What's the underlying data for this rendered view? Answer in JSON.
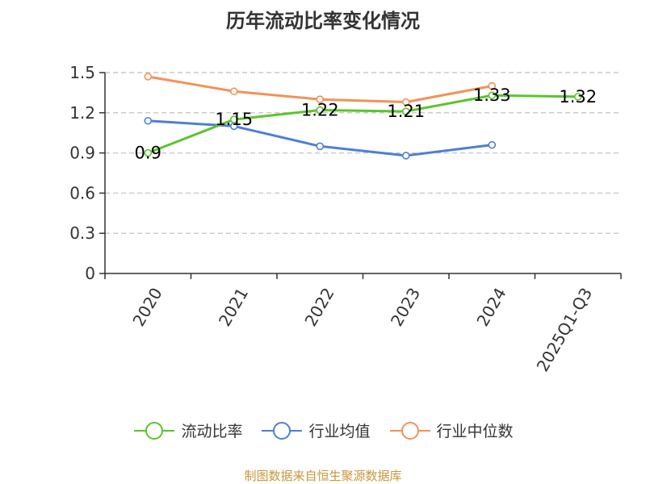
{
  "chart_data": {
    "type": "line",
    "title": "历年流动比率变化情况",
    "categories": [
      "2020",
      "2021",
      "2022",
      "2023",
      "2024",
      "2025Q1-Q3"
    ],
    "ylim": [
      0,
      1.5
    ],
    "yticks": [
      "0",
      "0.3",
      "0.6",
      "0.9",
      "1.2",
      "1.5"
    ],
    "grid": true,
    "legend_position": "bottom",
    "series": [
      {
        "name": "流动比率",
        "color": "#5bc42d",
        "values": [
          0.9,
          1.15,
          1.22,
          1.21,
          1.33,
          1.32
        ],
        "labels": [
          "0.9",
          "1.15",
          "1.22",
          "1.21",
          "1.33",
          "1.32"
        ]
      },
      {
        "name": "行业均值",
        "color": "#4e7fd6",
        "values": [
          1.14,
          1.1,
          0.95,
          0.88,
          0.96,
          null
        ]
      },
      {
        "name": "行业中位数",
        "color": "#f59158",
        "values": [
          1.47,
          1.36,
          1.3,
          1.28,
          1.4,
          null
        ]
      }
    ]
  },
  "footer": {
    "source": "制图数据来自恒生聚源数据库"
  }
}
